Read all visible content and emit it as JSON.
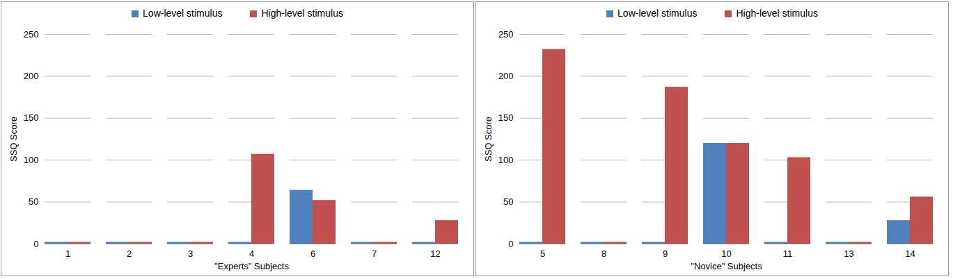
{
  "chart_data": [
    {
      "type": "bar",
      "categories": [
        "1",
        "2",
        "3",
        "4",
        "6",
        "7",
        "12"
      ],
      "series": [
        {
          "name": "Low-level stimulus",
          "color": "#4f81bd",
          "values": [
            2,
            2,
            2,
            2,
            64,
            2,
            2
          ]
        },
        {
          "name": "High-level stimulus",
          "color": "#c0504d",
          "values": [
            2,
            2,
            2,
            107,
            52,
            2,
            28
          ]
        }
      ],
      "xlabel": "\"Experts\" Subjects",
      "ylabel": "SSQ Score",
      "ylim": [
        0,
        250
      ],
      "yticks": [
        0,
        50,
        100,
        150,
        200,
        250
      ],
      "grid": true,
      "legend": "top"
    },
    {
      "type": "bar",
      "categories": [
        "5",
        "8",
        "9",
        "10",
        "11",
        "13",
        "14"
      ],
      "series": [
        {
          "name": "Low-level stimulus",
          "color": "#4f81bd",
          "values": [
            2,
            2,
            2,
            120,
            2,
            2,
            28
          ]
        },
        {
          "name": "High-level stimulus",
          "color": "#c0504d",
          "values": [
            232,
            2,
            187,
            120,
            103,
            2,
            56
          ]
        }
      ],
      "xlabel": "\"Novice\" Subjects",
      "ylabel": "SSQ Score",
      "ylim": [
        0,
        250
      ],
      "yticks": [
        0,
        50,
        100,
        150,
        200,
        250
      ],
      "grid": true,
      "legend": "top"
    }
  ]
}
